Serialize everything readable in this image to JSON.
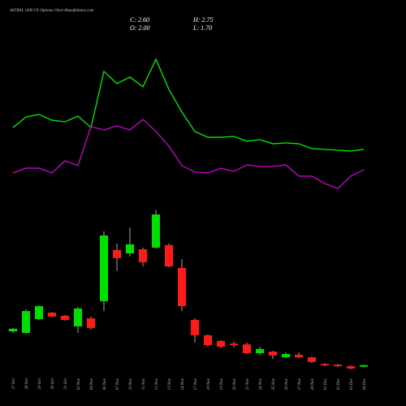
{
  "chart_data": {
    "type": "candlestick",
    "title": "ASTRAL 1600 CE Options Chart MunafaSutra.com",
    "header": {
      "close": "C: 2.60",
      "high": "H: 2.75",
      "open": "O: 2.00",
      "low": "L: 1.70"
    },
    "categories": [
      "27 Oct",
      "28 Oct",
      "29 Oct",
      "30 Oct",
      "31 Oct",
      "03 Nov",
      "04 Nov",
      "06 Nov",
      "07 Nov",
      "10 Nov",
      "11 Nov",
      "12 Nov",
      "13 Nov",
      "14 Nov",
      "17 Nov",
      "18 Nov",
      "19 Nov",
      "20 Nov",
      "21 Nov",
      "24 Nov",
      "25 Nov",
      "26 Nov",
      "27 Nov",
      "28 Nov",
      "01 Dec",
      "02 Dec",
      "03 Dec",
      "04 Dec"
    ],
    "open": [
      15.6,
      15,
      20.3,
      22.8,
      21.6,
      17.5,
      20.6,
      27.2,
      46.9,
      45.6,
      47.2,
      47.8,
      48.8,
      40,
      20,
      14.1,
      11.9,
      10.9,
      10.6,
      7.2,
      7.8,
      5.6,
      6.6,
      5.6,
      3.1,
      2.8,
      2.2,
      2
    ],
    "close": [
      16.6,
      23.4,
      25.3,
      21.3,
      20,
      24.4,
      16.9,
      52.5,
      43.8,
      49.1,
      42.2,
      60.6,
      40.6,
      25.3,
      14.1,
      10.3,
      9.7,
      10.3,
      7.2,
      8.8,
      6.3,
      6.9,
      5.6,
      3.8,
      2.5,
      2.2,
      1.3,
      2.6
    ],
    "high": [
      16.9,
      24.1,
      25.6,
      23.1,
      21.9,
      25,
      21.3,
      54.1,
      49.4,
      55.6,
      47.8,
      62.2,
      49.4,
      43.4,
      20.6,
      14.4,
      12.2,
      11.6,
      11.3,
      9.7,
      8.1,
      7.5,
      7.5,
      5.9,
      3.4,
      3.1,
      2.5,
      2.75
    ],
    "low": [
      15,
      14.7,
      20,
      21,
      19.7,
      15,
      16.3,
      23.4,
      38.8,
      44.4,
      40.6,
      47.5,
      40.3,
      23.4,
      11.3,
      9.7,
      9.1,
      9.4,
      6.9,
      6.6,
      5,
      5.3,
      5.3,
      3.4,
      2.2,
      1.9,
      1,
      1.7
    ],
    "up_color": "#00e000",
    "down_color": "#ff1a1a",
    "ylim": [
      0,
      65
    ],
    "lines": {
      "ylim": [
        0,
        100
      ],
      "series": [
        {
          "color": "#00ee00",
          "values": [
            49,
            55.2,
            56.7,
            53.3,
            52.4,
            55.7,
            49,
            81.9,
            74.8,
            78.6,
            72.9,
            89,
            71.4,
            58.1,
            46.7,
            43.3,
            43.3,
            43.8,
            41,
            41.9,
            39.5,
            40,
            39.5,
            36.7,
            36.2,
            35.7,
            35.2,
            36.2
          ]
        },
        {
          "color": "#cc00cc",
          "values": [
            22.4,
            25.2,
            25.2,
            22.4,
            29.5,
            26.7,
            49.5,
            47.6,
            50,
            47.6,
            53.8,
            46.7,
            38.1,
            26.7,
            22.9,
            22.4,
            25.2,
            23.3,
            27.1,
            26.2,
            26.2,
            27.1,
            20.5,
            20.5,
            16.2,
            13.3,
            20.5,
            24.3
          ]
        }
      ]
    }
  }
}
